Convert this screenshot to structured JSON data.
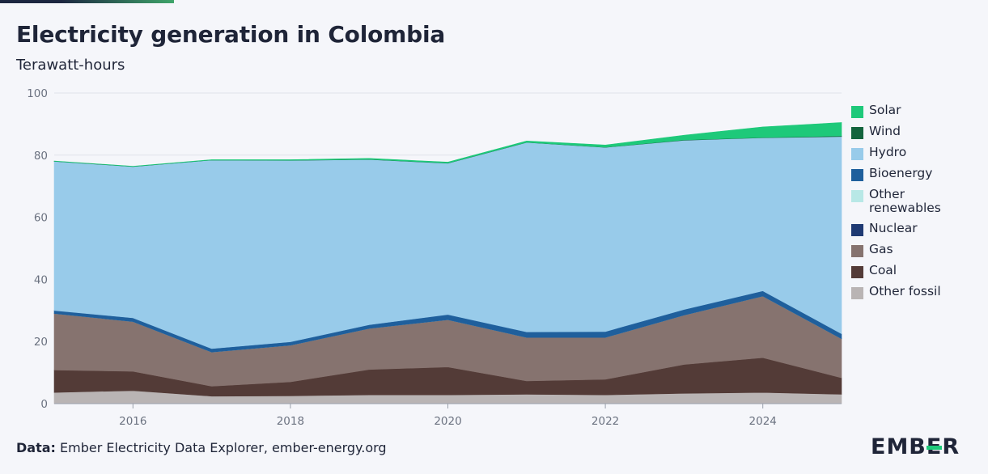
{
  "header": {
    "title": "Electricity generation in Colombia",
    "subtitle": "Terawatt-hours"
  },
  "footer": {
    "source_prefix": "Data:",
    "source_text": "Ember Electricity Data Explorer, ember-energy.org",
    "logo": "EMBER"
  },
  "chart_data": {
    "type": "area",
    "stacked": true,
    "title": "Electricity generation in Colombia",
    "ylabel": "Terawatt-hours",
    "x": [
      2015,
      2016,
      2017,
      2018,
      2019,
      2020,
      2021,
      2022,
      2023,
      2024,
      2025
    ],
    "xlim": [
      2015,
      2025
    ],
    "ylim": [
      0,
      100
    ],
    "yticks": [
      0,
      20,
      40,
      60,
      80,
      100
    ],
    "xticks": [
      2016,
      2018,
      2020,
      2022,
      2024
    ],
    "grid": true,
    "legend_position": "right",
    "series": [
      {
        "name": "Other fossil",
        "color": "#b9b4b4",
        "values": [
          3.6,
          4.2,
          2.4,
          2.5,
          2.8,
          2.8,
          3.0,
          2.8,
          3.3,
          3.6,
          3.0
        ]
      },
      {
        "name": "Coal",
        "color": "#533b37",
        "values": [
          7.2,
          6.2,
          3.2,
          4.5,
          8.2,
          9.0,
          4.3,
          5.0,
          9.3,
          11.2,
          5.3
        ]
      },
      {
        "name": "Gas",
        "color": "#86736f",
        "values": [
          18.2,
          16.0,
          11.0,
          11.8,
          13.2,
          15.2,
          14.0,
          13.5,
          15.9,
          19.8,
          12.6
        ]
      },
      {
        "name": "Nuclear",
        "color": "#1f3a73",
        "values": [
          0,
          0,
          0,
          0,
          0,
          0,
          0,
          0,
          0,
          0,
          0
        ]
      },
      {
        "name": "Other renewables",
        "color": "#b8e8e6",
        "values": [
          0,
          0,
          0,
          0,
          0,
          0,
          0,
          0,
          0,
          0,
          0
        ]
      },
      {
        "name": "Bioenergy",
        "color": "#1f5f9c",
        "values": [
          1.0,
          1.2,
          1.1,
          1.1,
          1.2,
          1.7,
          1.8,
          1.9,
          1.8,
          1.7,
          1.6
        ]
      },
      {
        "name": "Hydro",
        "color": "#98cbea",
        "values": [
          48.0,
          48.7,
          60.7,
          58.4,
          53.2,
          48.7,
          61.0,
          59.3,
          54.5,
          49.3,
          63.5
        ]
      },
      {
        "name": "Wind",
        "color": "#13643d",
        "values": [
          0.05,
          0.05,
          0.05,
          0.05,
          0.05,
          0.05,
          0.05,
          0.05,
          0.1,
          0.1,
          0.2
        ]
      },
      {
        "name": "Solar",
        "color": "#1ec97a",
        "values": [
          0.05,
          0.05,
          0.1,
          0.2,
          0.3,
          0.3,
          0.4,
          0.7,
          1.5,
          3.4,
          4.3
        ]
      }
    ]
  }
}
